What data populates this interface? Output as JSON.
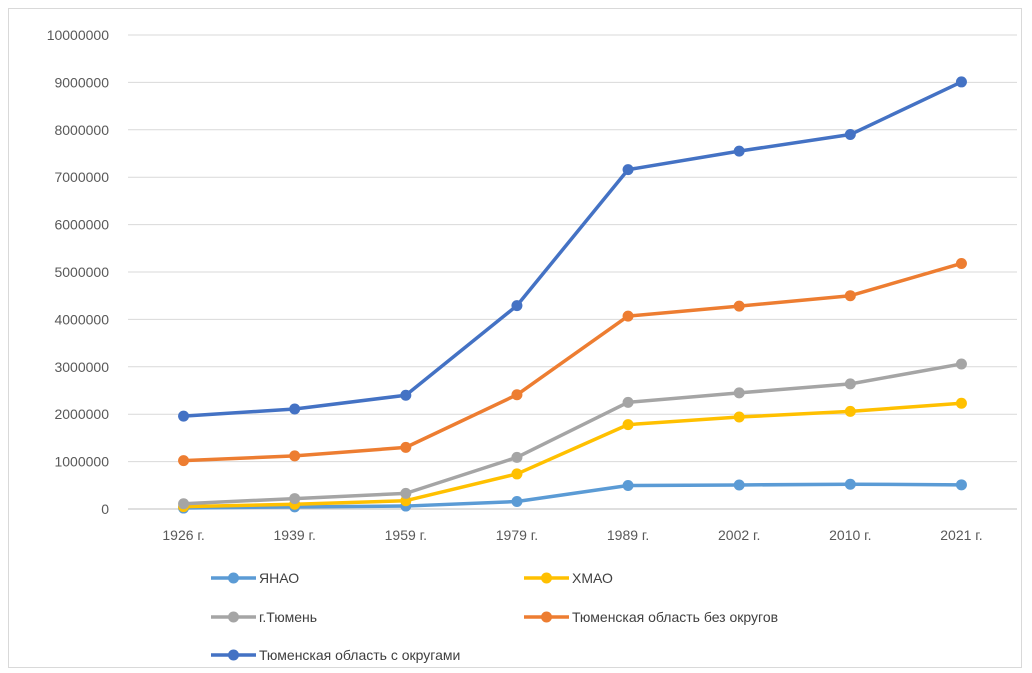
{
  "chart_data": {
    "type": "line",
    "title": "",
    "xlabel": "",
    "ylabel": "",
    "ylim": [
      0,
      10000000
    ],
    "yticks": [
      "0",
      "1000000",
      "2000000",
      "3000000",
      "4000000",
      "5000000",
      "6000000",
      "7000000",
      "8000000",
      "9000000",
      "10000000"
    ],
    "categories": [
      "1926 г.",
      "1939 г.",
      "1959 г.",
      "1979 г.",
      "1989 г.",
      "2002 г.",
      "2010 г.",
      "2021 г."
    ],
    "grid": true,
    "legend_position": "bottom",
    "series": [
      {
        "name": "ЯНАО",
        "color": "#5b9bd5",
        "values": [
          20000,
          45000,
          62000,
          158000,
          495000,
          507000,
          523000,
          510000
        ]
      },
      {
        "name": "ХМАО",
        "color": "#ffc000",
        "values": [
          50000,
          100000,
          175000,
          740000,
          1780000,
          1940000,
          2060000,
          2230000
        ]
      },
      {
        "name": "г.Тюмень",
        "color": "#a5a5a5",
        "values": [
          110000,
          220000,
          330000,
          1090000,
          2250000,
          2450000,
          2640000,
          3060000
        ]
      },
      {
        "name": "Тюменская область без округов",
        "color": "#ed7d31",
        "values": [
          1020000,
          1120000,
          1300000,
          2410000,
          4070000,
          4280000,
          4500000,
          5180000
        ]
      },
      {
        "name": "Тюменская область с округами",
        "color": "#4472c4",
        "values": [
          1960000,
          2110000,
          2400000,
          4290000,
          7160000,
          7550000,
          7900000,
          9010000
        ]
      }
    ]
  }
}
